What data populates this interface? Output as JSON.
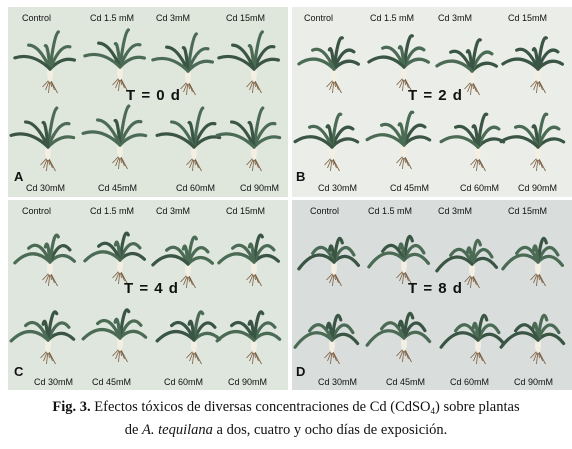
{
  "panels": [
    {
      "letter": "A",
      "time": "T = 0 d",
      "top_labels": [
        "Control",
        "Cd 1.5 mM",
        "Cd 3mM",
        "Cd 15mM"
      ],
      "bottom_labels": [
        "Cd 30mM",
        "Cd 45mM",
        "Cd 60mM",
        "Cd 90mM"
      ]
    },
    {
      "letter": "B",
      "time": "T = 2 d",
      "top_labels": [
        "Control",
        "Cd 1.5 mM",
        "Cd 3mM",
        "Cd 15mM"
      ],
      "bottom_labels": [
        "Cd 30mM",
        "Cd 45mM",
        "Cd 60mM",
        "Cd 90mM"
      ]
    },
    {
      "letter": "C",
      "time": "T = 4 d",
      "top_labels": [
        "Control",
        "Cd 1.5 mM",
        "Cd 3mM",
        "Cd 15mM"
      ],
      "bottom_labels": [
        "Cd 30mM",
        "Cd 45mM",
        "Cd 60mM",
        "Cd 90mM"
      ]
    },
    {
      "letter": "D",
      "time": "T = 8 d",
      "top_labels": [
        "Control",
        "Cd 1.5 mM",
        "Cd 3mM",
        "Cd 15mM"
      ],
      "bottom_labels": [
        "Cd 30mM",
        "Cd 45mM",
        "Cd 60mM",
        "Cd 90mM"
      ]
    }
  ],
  "caption": {
    "fig_label": "Fig. 3.",
    "text_before_sub": "Efectos tóxicos de diversas concentraciones de Cd (CdSO",
    "subscript": "4",
    "text_after_sub": ") sobre plantas",
    "line2_before": "de ",
    "species": "A. tequilana",
    "line2_after": " a dos, cuatro y ocho días de exposición."
  },
  "colors": {
    "leaf": "#4b6b55",
    "leaf_dark": "#3a5544",
    "root": "#7a5a3c",
    "stem": "#f3efe2"
  }
}
